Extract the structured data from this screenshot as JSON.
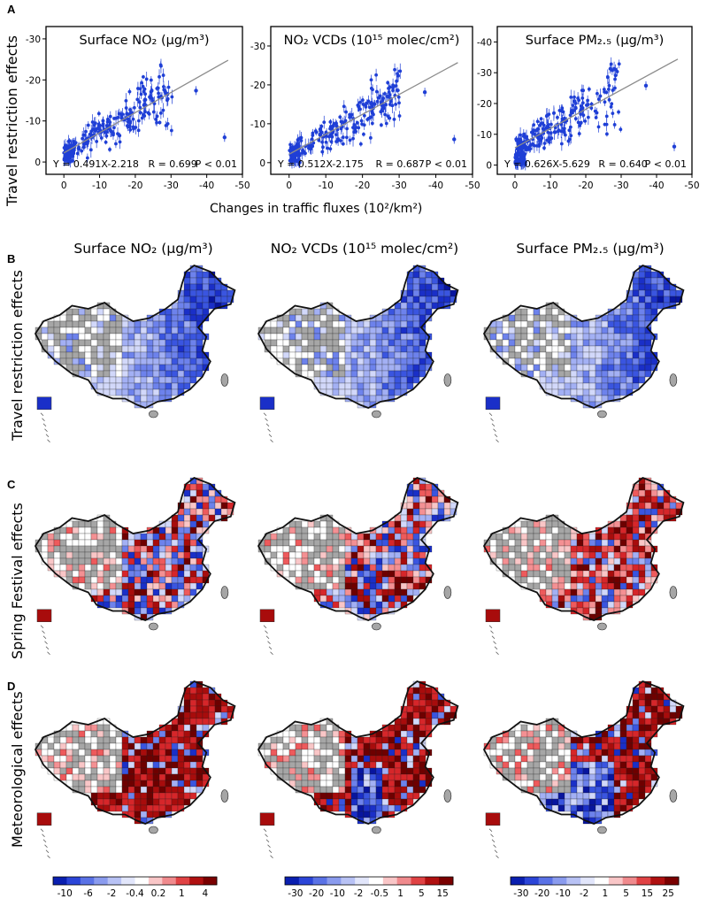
{
  "panels": {
    "a": "A",
    "b": "B",
    "c": "C",
    "d": "D"
  },
  "scatter": {
    "ylabel": "Travel restriction effects",
    "xlabel": "Changes in traffic fluxes (10²/km²)"
  },
  "chart_data": [
    {
      "type": "scatter",
      "title": "Surface NO₂ (μg/m³)",
      "xlabel": "Changes in traffic fluxes (10²/km²)",
      "ylabel": "Travel restriction effects",
      "xlim": [
        5,
        -50
      ],
      "ylim": [
        3,
        -33
      ],
      "xticks": [
        0,
        -10,
        -20,
        -30,
        -40,
        -50
      ],
      "yticks": [
        0,
        -10,
        -20,
        -30
      ],
      "equation": "Y = 0.491X-2.218",
      "r": "R = 0.699",
      "p": "P < 0.01",
      "fit": {
        "slope": 0.491,
        "intercept": -2.218,
        "x_range": [
          0,
          -46
        ]
      },
      "points_summary": "~300 points, dense near x=0..-20, y=0..-22; outliers at (-38,-18),(-45,-6)"
    },
    {
      "type": "scatter",
      "title": "NO₂ VCDs (10¹⁵ molec/cm²)",
      "xlabel": "Changes in traffic fluxes (10²/km²)",
      "ylabel": "Travel restriction effects",
      "xlim": [
        5,
        -50
      ],
      "ylim": [
        3,
        -35
      ],
      "xticks": [
        0,
        -10,
        -20,
        -30,
        -40,
        -50
      ],
      "yticks": [
        0,
        -10,
        -20,
        -30
      ],
      "equation": "Y = 0.512X-2.175",
      "r": "R = 0.687",
      "p": "P < 0.01",
      "fit": {
        "slope": 0.512,
        "intercept": -2.175,
        "x_range": [
          0,
          -46
        ]
      },
      "points_summary": "~300 points, dense near x=0..-25, y=0..-28; outliers at (-35,-23),(-45,-6)"
    },
    {
      "type": "scatter",
      "title": "Surface PM₂.₅ (μg/m³)",
      "xlabel": "Changes in traffic fluxes (10²/km²)",
      "ylabel": "Travel restriction effects",
      "xlim": [
        5,
        -50
      ],
      "ylim": [
        3,
        -45
      ],
      "xticks": [
        0,
        -10,
        -20,
        -30,
        -40,
        -50
      ],
      "yticks": [
        0,
        -10,
        -20,
        -30,
        -40
      ],
      "equation": "Y = 0.626X-5.629",
      "r": "R = 0.640",
      "p": "P < 0.01",
      "fit": {
        "slope": 0.626,
        "intercept": -5.629,
        "x_range": [
          0,
          -46
        ]
      },
      "points_summary": "~300 points, dense near x=0..-25, y=0..-35; outliers at (-40,-21),(-45,-5)"
    }
  ],
  "map_columns": [
    "Surface NO₂ (μg/m³)",
    "NO₂ VCDs (10¹⁵ molec/cm²)",
    "Surface PM₂.₅ (μg/m³)"
  ],
  "map_rows": [
    "Travel restriction effects",
    "Spring Festival effects",
    "Meteorological effects"
  ],
  "colorbars": [
    {
      "ticks": [
        "-10",
        "-6",
        "-2",
        "-0.4",
        "0.2",
        "1",
        "4"
      ]
    },
    {
      "ticks": [
        "-30",
        "-20",
        "-10",
        "-2",
        "-0.5",
        "1",
        "5",
        "15"
      ]
    },
    {
      "ticks": [
        "-30",
        "-20",
        "-10",
        "-2",
        "1",
        "5",
        "15",
        "25"
      ]
    }
  ],
  "colors": {
    "point": "#1f3fd6",
    "fit": "#8c8c8c",
    "gray_region": "#a6a6a6",
    "blue_dark": "#0a1fb0",
    "red_dark": "#7a0000"
  }
}
